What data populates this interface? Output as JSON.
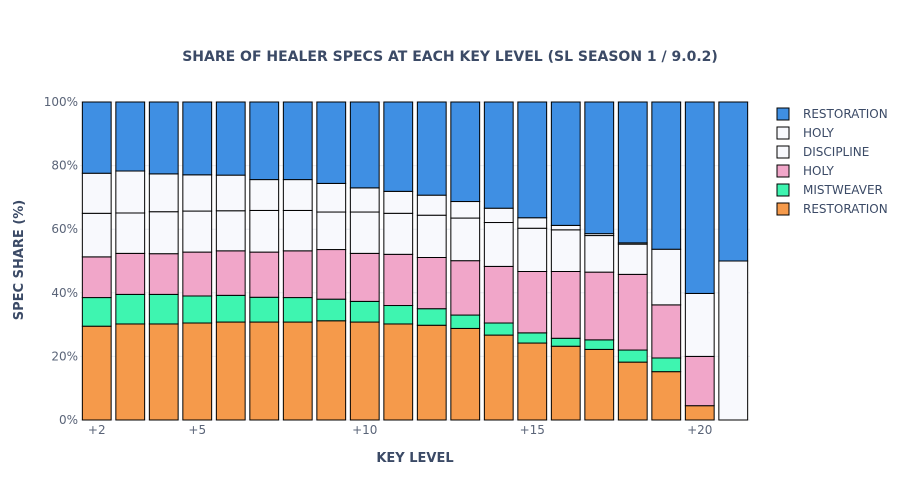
{
  "chart_data": {
    "type": "bar",
    "stacked": true,
    "title": "SHARE OF HEALER SPECS AT EACH KEY LEVEL (SL SEASON 1 / 9.0.2)",
    "xlabel": "KEY LEVEL",
    "ylabel": "SPEC SHARE (%)",
    "ylim": [
      0,
      100
    ],
    "y_ticks": [
      "0%",
      "20%",
      "40%",
      "60%",
      "80%",
      "100%"
    ],
    "x_tick_labels": [
      {
        "index": 0,
        "label": "+2"
      },
      {
        "index": 3,
        "label": "+5"
      },
      {
        "index": 8,
        "label": "+10"
      },
      {
        "index": 13,
        "label": "+15"
      },
      {
        "index": 18,
        "label": "+20"
      }
    ],
    "categories": [
      "+2",
      "+3",
      "+4",
      "+5",
      "+6",
      "+7",
      "+8",
      "+9",
      "+10",
      "+11",
      "+12",
      "+13",
      "+14",
      "+15",
      "+16",
      "+17",
      "+18",
      "+19",
      "+20",
      "+21"
    ],
    "legend_position": "top-right",
    "series": [
      {
        "name": "RESTORATION",
        "color": "#f59a4b",
        "values": [
          29.5,
          30.2,
          30.2,
          30.5,
          30.8,
          30.8,
          30.8,
          31.2,
          30.8,
          30.2,
          29.8,
          28.8,
          26.7,
          24.2,
          23.2,
          22.2,
          18.2,
          15.2,
          4.5,
          0
        ]
      },
      {
        "name": "MISTWEAVER",
        "color": "#3ef5b0",
        "values": [
          9.0,
          9.3,
          9.3,
          8.5,
          8.4,
          7.8,
          7.7,
          6.8,
          6.5,
          5.8,
          5.2,
          4.2,
          3.8,
          3.2,
          2.5,
          3.0,
          3.8,
          4.3,
          0,
          0
        ]
      },
      {
        "name": "HOLY",
        "color": "#f1a6c9",
        "values": [
          12.8,
          12.9,
          12.8,
          13.8,
          14.0,
          14.2,
          14.7,
          15.6,
          15.1,
          16.1,
          16.1,
          17.1,
          17.8,
          19.3,
          21.0,
          21.3,
          23.8,
          16.7,
          15.5,
          0
        ]
      },
      {
        "name": "DISCIPLINE",
        "color": "#f8f9fd",
        "values": [
          13.7,
          12.7,
          13.2,
          12.9,
          12.6,
          13.1,
          12.7,
          11.8,
          13.0,
          12.9,
          13.3,
          13.4,
          13.8,
          13.6,
          13.1,
          11.5,
          9.5,
          17.5,
          0,
          0
        ]
      },
      {
        "name": "HOLY",
        "color": "#f8f9fd",
        "values": [
          12.6,
          13.2,
          11.9,
          11.4,
          11.2,
          9.7,
          9.7,
          9.0,
          7.6,
          6.9,
          6.3,
          5.2,
          4.5,
          3.3,
          1.4,
          0.6,
          0.4,
          0,
          19.8,
          50.0
        ]
      },
      {
        "name": "RESTORATION",
        "color": "#3f8fe3",
        "values": [
          22.4,
          21.7,
          22.6,
          22.9,
          23.0,
          24.4,
          24.4,
          25.6,
          27.0,
          28.1,
          29.3,
          31.3,
          33.4,
          36.4,
          38.8,
          41.4,
          44.3,
          46.3,
          60.2,
          50.0
        ]
      }
    ]
  }
}
